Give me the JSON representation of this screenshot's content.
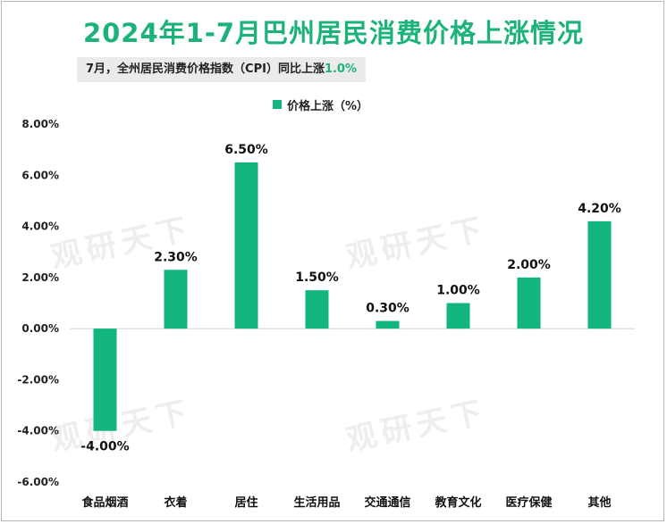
{
  "title": "2024年1-7月巴州居民消费价格上涨情况",
  "subtitle": {
    "prefix": "7月，全州居民消费价格指数（CPI）同比上涨",
    "value": "1.0%"
  },
  "colors": {
    "bar": "#12b57f",
    "title": "#1cb37a"
  },
  "watermark": "观研天下",
  "chart_data": {
    "type": "bar",
    "title": "2024年1-7月巴州居民消费价格上涨情况",
    "categories": [
      "食品烟酒",
      "衣着",
      "居住",
      "生活用品",
      "交通通信",
      "教育文化",
      "医疗保健",
      "其他"
    ],
    "series": [
      {
        "name": "价格上涨（%）",
        "values": [
          -4.0,
          2.3,
          6.5,
          1.5,
          0.3,
          1.0,
          2.0,
          4.2
        ]
      }
    ],
    "data_labels": [
      "-4.00%",
      "2.30%",
      "6.50%",
      "1.50%",
      "0.30%",
      "1.00%",
      "2.00%",
      "4.20%"
    ],
    "yticks": [
      "8.00%",
      "6.00%",
      "4.00%",
      "2.00%",
      "0.00%",
      "-2.00%",
      "-4.00%",
      "-6.00%"
    ],
    "ylim": [
      -6,
      8
    ],
    "xlabel": "",
    "ylabel": "",
    "legend": "top-center",
    "grid": false
  }
}
